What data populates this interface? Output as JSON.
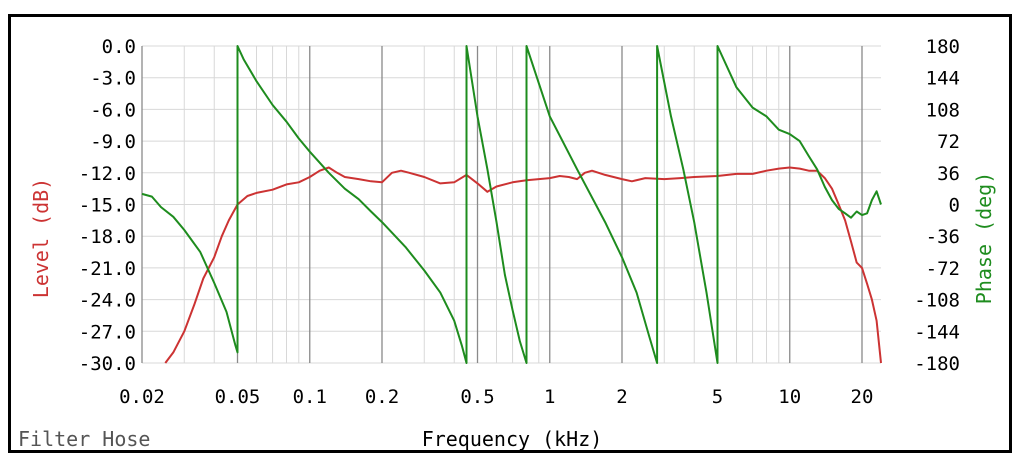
{
  "chart_data": {
    "type": "line",
    "title": "",
    "footer_label": "Filter Hose",
    "xlabel": "Frequency (kHz)",
    "ylabel_left": "Level (dB)",
    "ylabel_right": "Phase (deg)",
    "x_scale": "log",
    "xlim": [
      0.02,
      24
    ],
    "ylim_left": [
      -30,
      0
    ],
    "ylim_right": [
      -180,
      180
    ],
    "x_ticks": [
      0.02,
      0.05,
      0.1,
      0.2,
      0.5,
      1,
      2,
      5,
      10,
      20
    ],
    "x_tick_labels": [
      "0.02",
      "0.05",
      "0.1",
      "0.2",
      "0.5",
      "1",
      "2",
      "5",
      "10",
      "20"
    ],
    "y_left_ticks": [
      0,
      -3,
      -6,
      -9,
      -12,
      -15,
      -18,
      -21,
      -24,
      -27,
      -30
    ],
    "y_left_tick_labels": [
      "0.0",
      "-3.0",
      "-6.0",
      "-9.0",
      "-12.0",
      "-15.0",
      "-18.0",
      "-21.0",
      "-24.0",
      "-27.0",
      "-30.0"
    ],
    "y_right_ticks": [
      180,
      144,
      108,
      72,
      36,
      0,
      -36,
      -72,
      -108,
      -144,
      -180
    ],
    "y_right_tick_labels": [
      "180",
      "144",
      "108",
      "72",
      "36",
      "0",
      "-36",
      "-72",
      "-108",
      "-144",
      "-180"
    ],
    "grid": true,
    "colors": {
      "level": "#cc3333",
      "phase": "#1e8c1e",
      "grid_minor": "#d8d8d8",
      "grid_major": "#8a8a8a"
    },
    "series": [
      {
        "axis": "left",
        "points": [
          [
            0.025,
            -30
          ],
          [
            0.027,
            -29
          ],
          [
            0.03,
            -27
          ],
          [
            0.033,
            -24.5
          ],
          [
            0.036,
            -22
          ],
          [
            0.04,
            -20
          ],
          [
            0.043,
            -18
          ],
          [
            0.046,
            -16.5
          ],
          [
            0.05,
            -15
          ],
          [
            0.055,
            -14.2
          ],
          [
            0.06,
            -13.9
          ],
          [
            0.07,
            -13.6
          ],
          [
            0.08,
            -13.1
          ],
          [
            0.09,
            -12.9
          ],
          [
            0.1,
            -12.4
          ],
          [
            0.11,
            -11.8
          ],
          [
            0.12,
            -11.5
          ],
          [
            0.13,
            -12
          ],
          [
            0.14,
            -12.4
          ],
          [
            0.16,
            -12.6
          ],
          [
            0.18,
            -12.8
          ],
          [
            0.2,
            -12.9
          ],
          [
            0.22,
            -12
          ],
          [
            0.24,
            -11.8
          ],
          [
            0.26,
            -12
          ],
          [
            0.3,
            -12.4
          ],
          [
            0.35,
            -13
          ],
          [
            0.4,
            -12.9
          ],
          [
            0.45,
            -12.2
          ],
          [
            0.5,
            -13
          ],
          [
            0.55,
            -13.8
          ],
          [
            0.6,
            -13.3
          ],
          [
            0.7,
            -12.9
          ],
          [
            0.8,
            -12.7
          ],
          [
            0.9,
            -12.6
          ],
          [
            1,
            -12.5
          ],
          [
            1.1,
            -12.3
          ],
          [
            1.2,
            -12.4
          ],
          [
            1.3,
            -12.6
          ],
          [
            1.4,
            -12
          ],
          [
            1.5,
            -11.8
          ],
          [
            1.7,
            -12.2
          ],
          [
            2,
            -12.6
          ],
          [
            2.2,
            -12.8
          ],
          [
            2.5,
            -12.5
          ],
          [
            3,
            -12.6
          ],
          [
            3.5,
            -12.5
          ],
          [
            4,
            -12.4
          ],
          [
            5,
            -12.3
          ],
          [
            6,
            -12.1
          ],
          [
            7,
            -12.1
          ],
          [
            8,
            -11.8
          ],
          [
            9,
            -11.6
          ],
          [
            10,
            -11.5
          ],
          [
            11,
            -11.6
          ],
          [
            12,
            -11.8
          ],
          [
            13,
            -11.8
          ],
          [
            14,
            -12.5
          ],
          [
            15,
            -13.5
          ],
          [
            16,
            -15
          ],
          [
            17,
            -16.5
          ],
          [
            18,
            -18.5
          ],
          [
            19,
            -20.5
          ],
          [
            20,
            -21
          ],
          [
            21,
            -22.5
          ],
          [
            22,
            -24
          ],
          [
            23,
            -26
          ],
          [
            24,
            -30
          ]
        ]
      },
      {
        "axis": "right",
        "points": [
          [
            0.02,
            12
          ],
          [
            0.022,
            9
          ],
          [
            0.024,
            -3
          ],
          [
            0.027,
            -14
          ],
          [
            0.03,
            -29
          ],
          [
            0.035,
            -54
          ],
          [
            0.04,
            -89
          ],
          [
            0.045,
            -122
          ],
          [
            0.049,
            -160
          ],
          [
            0.05,
            -168
          ],
          [
            0.05,
            180
          ],
          [
            0.053,
            165
          ],
          [
            0.06,
            140
          ],
          [
            0.07,
            113
          ],
          [
            0.08,
            94
          ],
          [
            0.09,
            75
          ],
          [
            0.1,
            60
          ],
          [
            0.12,
            36
          ],
          [
            0.14,
            18
          ],
          [
            0.16,
            6
          ],
          [
            0.18,
            -8
          ],
          [
            0.2,
            -20
          ],
          [
            0.25,
            -48
          ],
          [
            0.3,
            -75
          ],
          [
            0.35,
            -100
          ],
          [
            0.4,
            -132
          ],
          [
            0.43,
            -160
          ],
          [
            0.45,
            -180
          ],
          [
            0.45,
            180
          ],
          [
            0.5,
            100
          ],
          [
            0.55,
            40
          ],
          [
            0.6,
            -20
          ],
          [
            0.65,
            -80
          ],
          [
            0.7,
            -120
          ],
          [
            0.75,
            -155
          ],
          [
            0.8,
            -180
          ],
          [
            0.8,
            180
          ],
          [
            1,
            100
          ],
          [
            1.3,
            40
          ],
          [
            1.7,
            -20
          ],
          [
            2,
            -60
          ],
          [
            2.3,
            -100
          ],
          [
            2.6,
            -150
          ],
          [
            2.8,
            -180
          ],
          [
            2.8,
            180
          ],
          [
            3.2,
            100
          ],
          [
            3.6,
            40
          ],
          [
            4,
            -20
          ],
          [
            4.5,
            -100
          ],
          [
            5,
            -180
          ],
          [
            5,
            180
          ],
          [
            6,
            133
          ],
          [
            7,
            110
          ],
          [
            8,
            100
          ],
          [
            9,
            85
          ],
          [
            10,
            80
          ],
          [
            11,
            72
          ],
          [
            12,
            55
          ],
          [
            13,
            40
          ],
          [
            14,
            20
          ],
          [
            15,
            5
          ],
          [
            16,
            -5
          ],
          [
            17,
            -10
          ],
          [
            18,
            -15
          ],
          [
            19,
            -8
          ],
          [
            20,
            -12
          ],
          [
            21,
            -10
          ],
          [
            22,
            5
          ],
          [
            23,
            15
          ],
          [
            24,
            0
          ]
        ]
      }
    ]
  }
}
